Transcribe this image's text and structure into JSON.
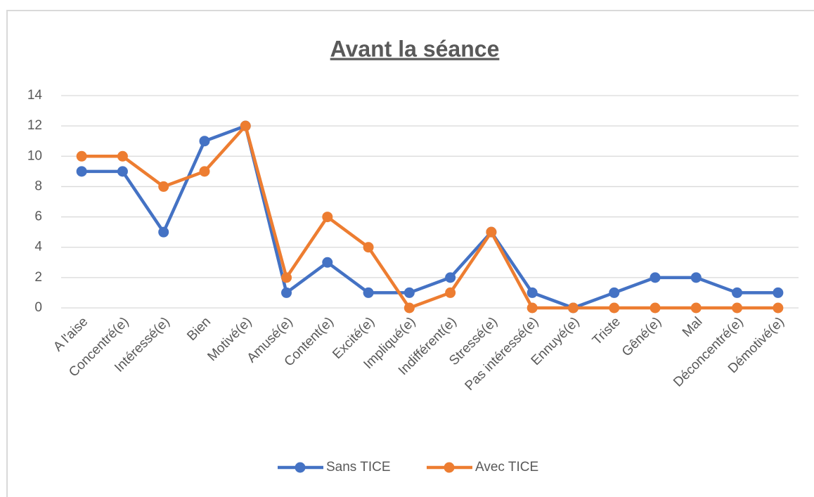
{
  "chart_data": {
    "type": "line",
    "title": "Avant la séance",
    "categories": [
      "A l'aise",
      "Concentré(e)",
      "Intéressé(e)",
      "Bien",
      "Motivé(e)",
      "Amusé(e)",
      "Content(e)",
      "Excité(e)",
      "Impliqué(e)",
      "Indifférent(e)",
      "Stressé(e)",
      "Pas intéressé(e)",
      "Ennuyé(e)",
      "Triste",
      "Gêné(e)",
      "Mal",
      "Déconcentré(e)",
      "Démotivé(e)"
    ],
    "series": [
      {
        "name": "Sans TICE",
        "color": "#4472c4",
        "values": [
          9,
          9,
          5,
          11,
          12,
          1,
          3,
          1,
          1,
          2,
          5,
          1,
          0,
          1,
          2,
          2,
          1,
          1
        ]
      },
      {
        "name": "Avec TICE",
        "color": "#ed7d31",
        "values": [
          10,
          10,
          8,
          9,
          12,
          2,
          6,
          4,
          0,
          1,
          5,
          0,
          0,
          0,
          0,
          0,
          0,
          0
        ]
      }
    ],
    "ylim": [
      0,
      14
    ],
    "yticks": [
      0,
      2,
      4,
      6,
      8,
      10,
      12,
      14
    ],
    "grid": true,
    "legend": "bottom"
  }
}
